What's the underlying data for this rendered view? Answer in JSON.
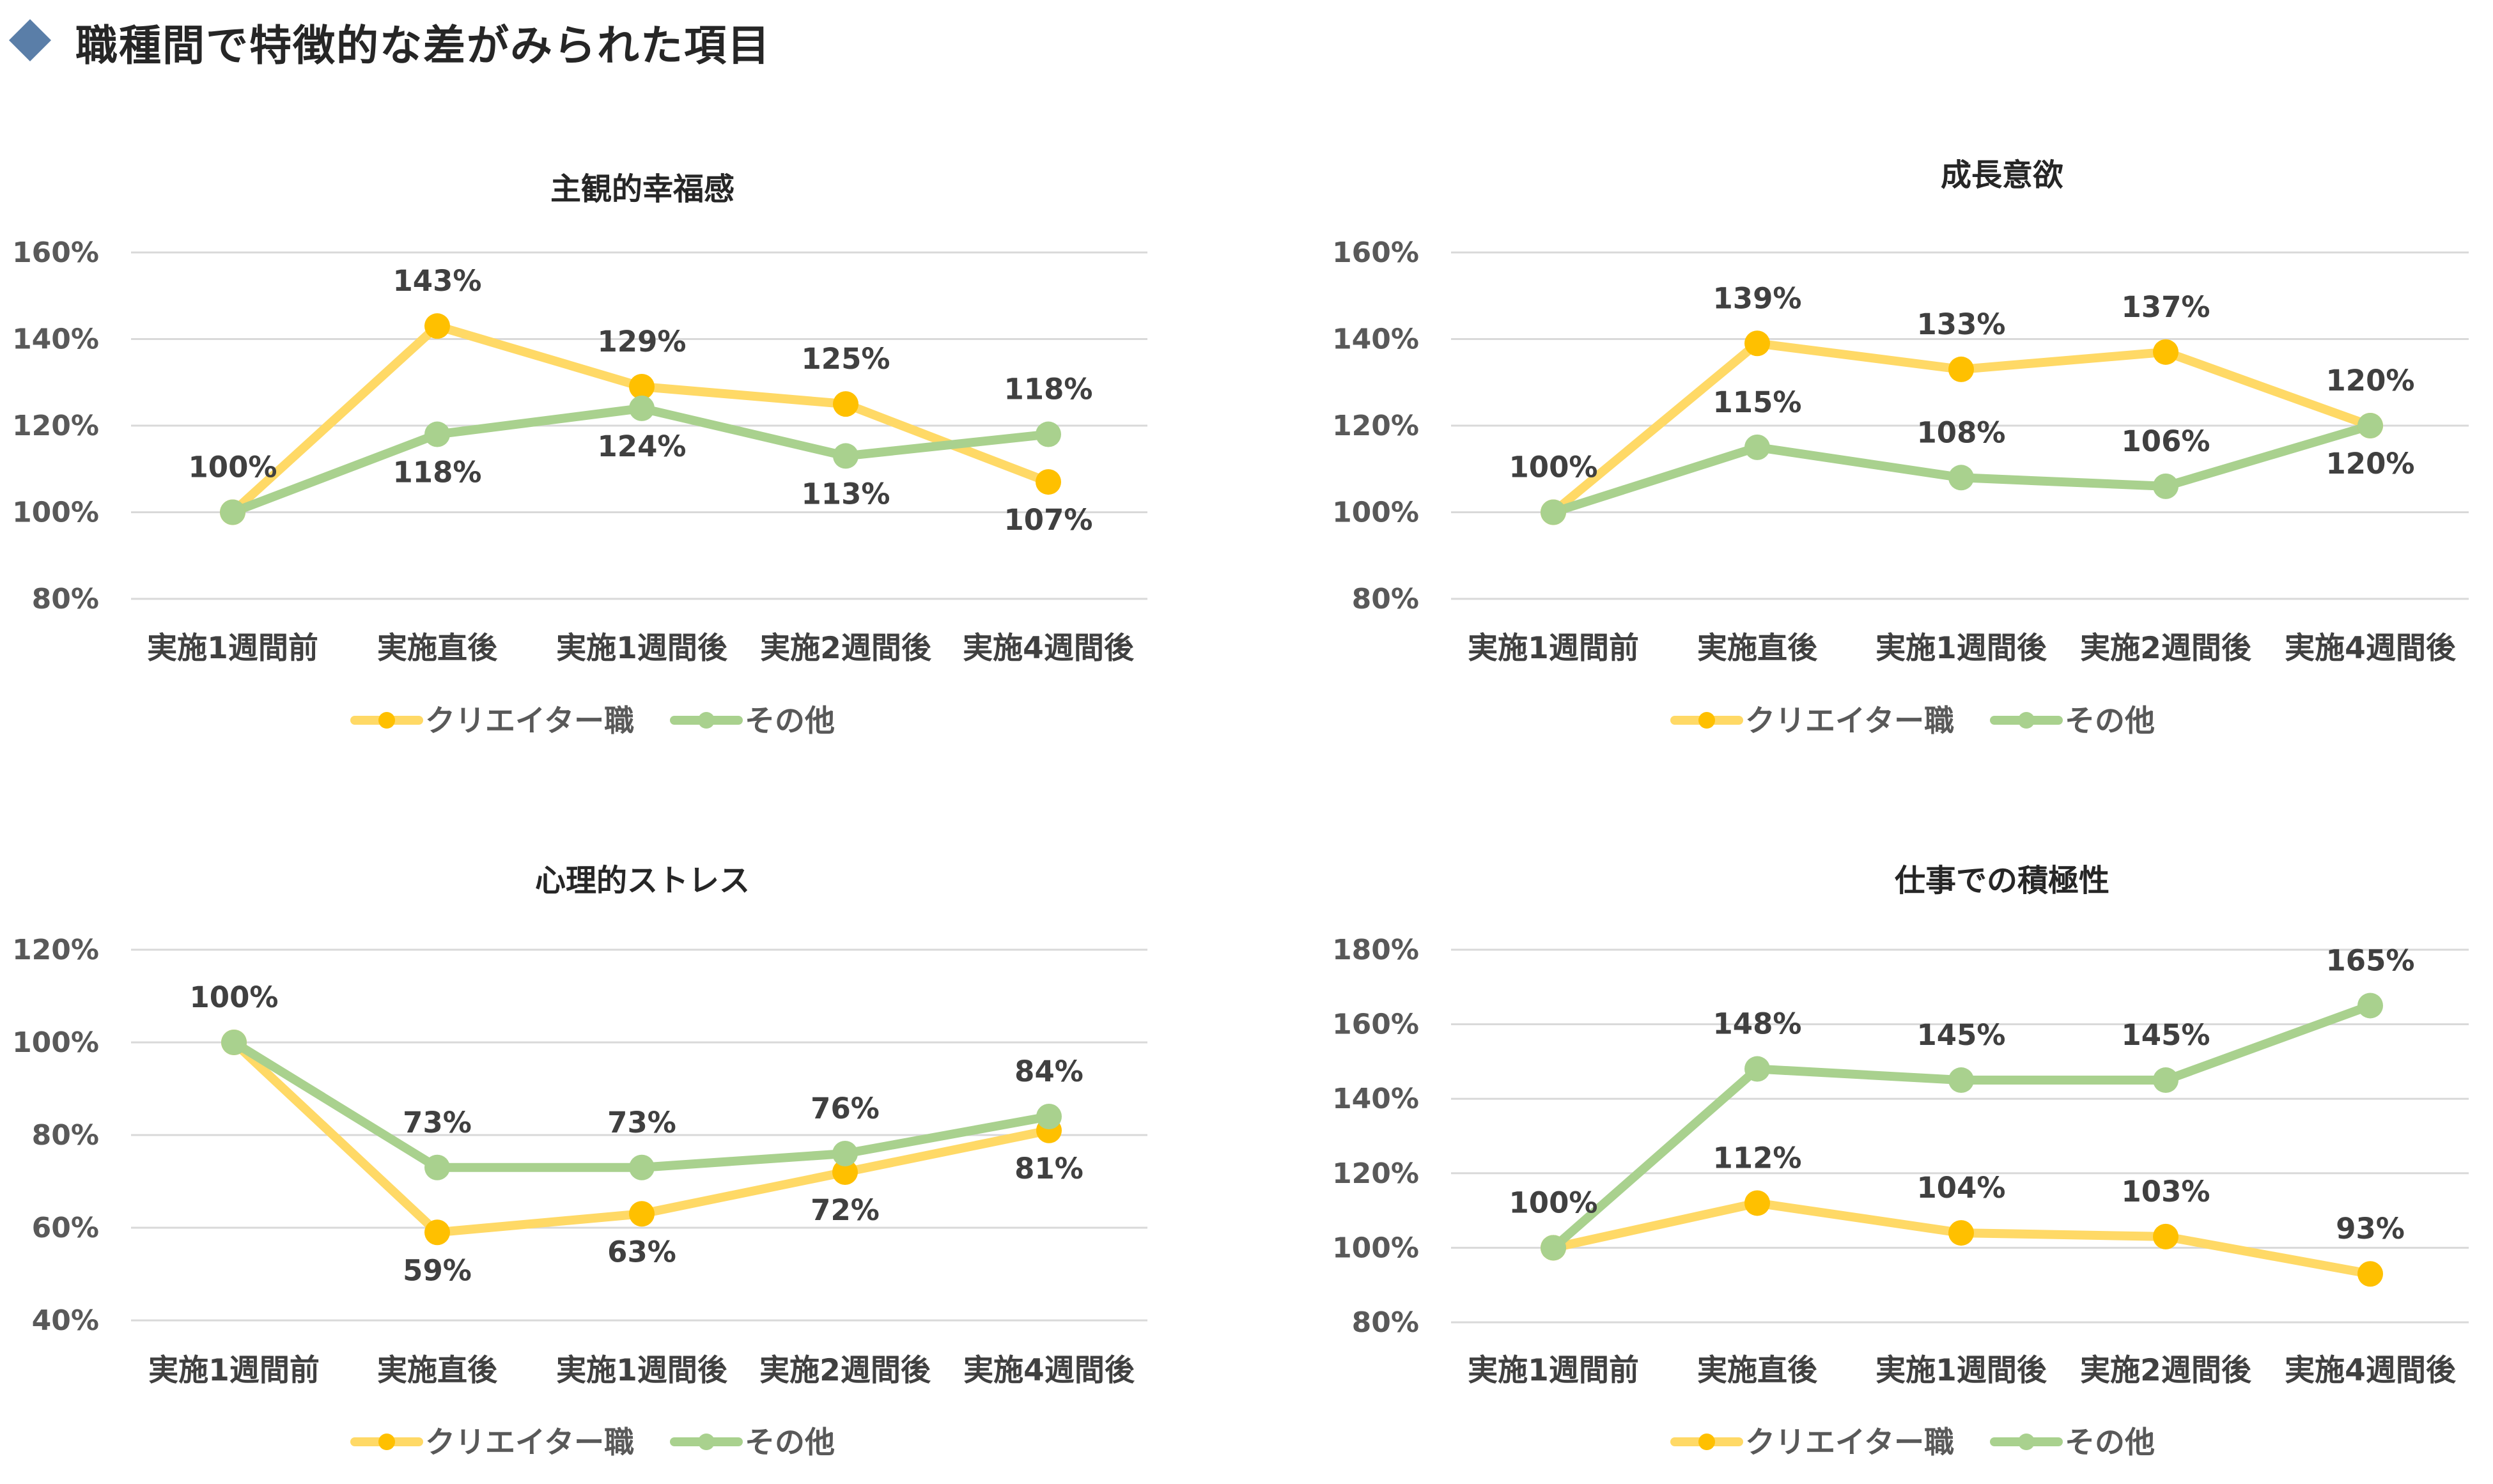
{
  "page": {
    "title": "職種間で特徴的な差がみられた項目",
    "accent_color": "#5a7ea8"
  },
  "colors": {
    "creator_line": "#ffd966",
    "creator_marker": "#ffc000",
    "other_line": "#a9d18e",
    "other_marker": "#a9d18e",
    "grid": "#d9d9d9"
  },
  "chart_data": [
    {
      "type": "line",
      "title": "主観的幸福感",
      "categories": [
        "実施1週間前",
        "実施直後",
        "実施1週間後",
        "実施2週間後",
        "実施4週間後"
      ],
      "ylim": [
        80,
        160
      ],
      "yticks": [
        80,
        100,
        120,
        140,
        160
      ],
      "series": [
        {
          "name": "クリエイター職",
          "values": [
            100,
            143,
            129,
            125,
            107
          ],
          "labels": [
            "100%",
            "143%",
            "129%",
            "125%",
            "107%"
          ],
          "label_pos": [
            "above",
            "above",
            "above",
            "above",
            "below"
          ]
        },
        {
          "name": "その他",
          "values": [
            100,
            118,
            124,
            113,
            118
          ],
          "labels": [
            "",
            "118%",
            "124%",
            "113%",
            "118%"
          ],
          "label_pos": [
            "none",
            "below",
            "below",
            "below",
            "above"
          ]
        }
      ],
      "legend": [
        "クリエイター職",
        "その他"
      ]
    },
    {
      "type": "line",
      "title": "成長意欲",
      "categories": [
        "実施1週間前",
        "実施直後",
        "実施1週間後",
        "実施2週間後",
        "実施4週間後"
      ],
      "ylim": [
        80,
        160
      ],
      "yticks": [
        80,
        100,
        120,
        140,
        160
      ],
      "series": [
        {
          "name": "クリエイター職",
          "values": [
            100,
            139,
            133,
            137,
            120
          ],
          "labels": [
            "100%",
            "139%",
            "133%",
            "137%",
            "120%"
          ],
          "label_pos": [
            "above",
            "above",
            "above",
            "above",
            "above"
          ]
        },
        {
          "name": "その他",
          "values": [
            100,
            115,
            108,
            106,
            120
          ],
          "labels": [
            "",
            "115%",
            "108%",
            "106%",
            "120%"
          ],
          "label_pos": [
            "none",
            "above",
            "above",
            "above",
            "below"
          ]
        }
      ],
      "legend": [
        "クリエイター職",
        "その他"
      ]
    },
    {
      "type": "line",
      "title": "心理的ストレス",
      "categories": [
        "実施1週間前",
        "実施直後",
        "実施1週間後",
        "実施2週間後",
        "実施4週間後"
      ],
      "ylim": [
        40,
        120
      ],
      "yticks": [
        40,
        60,
        80,
        100,
        120
      ],
      "series": [
        {
          "name": "クリエイター職",
          "values": [
            100,
            59,
            63,
            72,
            81
          ],
          "labels": [
            "100%",
            "59%",
            "63%",
            "72%",
            "81%"
          ],
          "label_pos": [
            "above",
            "below",
            "below",
            "below",
            "below"
          ]
        },
        {
          "name": "その他",
          "values": [
            100,
            73,
            73,
            76,
            84
          ],
          "labels": [
            "",
            "73%",
            "73%",
            "76%",
            "84%"
          ],
          "label_pos": [
            "none",
            "above",
            "above",
            "above",
            "above"
          ]
        }
      ],
      "legend": [
        "クリエイター職",
        "その他"
      ]
    },
    {
      "type": "line",
      "title": "仕事での積極性",
      "categories": [
        "実施1週間前",
        "実施直後",
        "実施1週間後",
        "実施2週間後",
        "実施4週間後"
      ],
      "ylim": [
        80,
        180
      ],
      "yticks": [
        80,
        100,
        120,
        140,
        160,
        180
      ],
      "series": [
        {
          "name": "クリエイター職",
          "values": [
            100,
            112,
            104,
            103,
            93
          ],
          "labels": [
            "100%",
            "112%",
            "104%",
            "103%",
            "93%"
          ],
          "label_pos": [
            "above",
            "above",
            "above",
            "above",
            "above"
          ]
        },
        {
          "name": "その他",
          "values": [
            100,
            148,
            145,
            145,
            165
          ],
          "labels": [
            "",
            "148%",
            "145%",
            "145%",
            "165%"
          ],
          "label_pos": [
            "none",
            "above",
            "above",
            "above",
            "above"
          ]
        }
      ],
      "legend": [
        "クリエイター職",
        "その他"
      ]
    }
  ]
}
